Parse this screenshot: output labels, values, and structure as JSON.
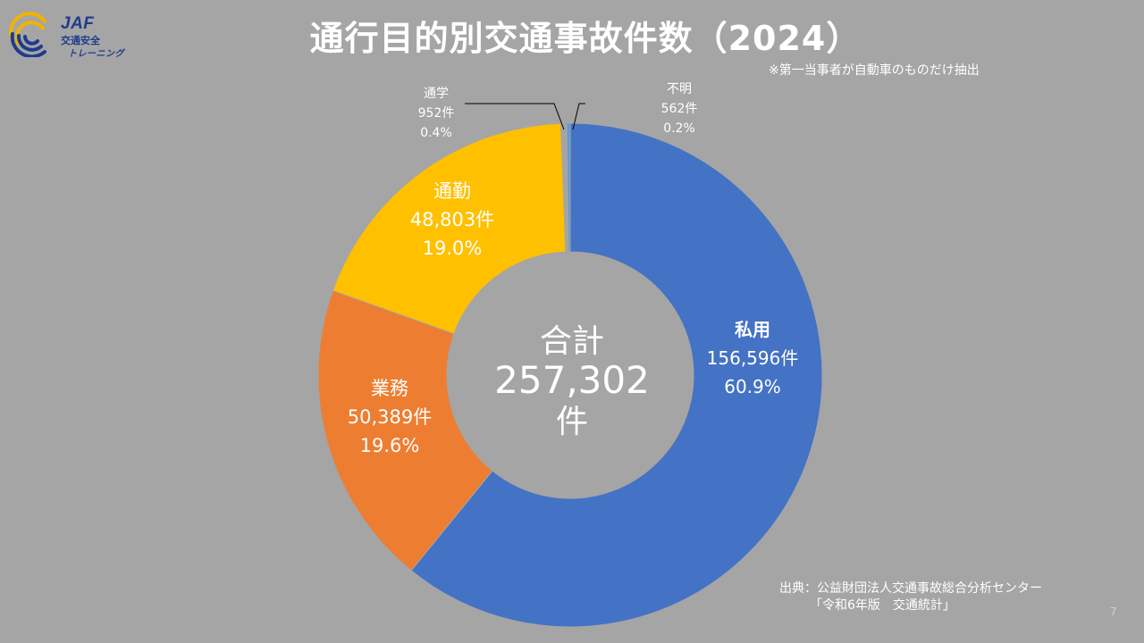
{
  "logo": {
    "line1": "JAF",
    "line2": "交通安全",
    "line3": "トレーニング"
  },
  "title": "通行目的別交通事故件数（2024）",
  "note": "※第一当事者が自動車のものだけ抽出",
  "source": {
    "line1": "出典：公益財団法人交通事故総合分析センター",
    "line2": "「令和6年版　交通統計」"
  },
  "page_number": "7",
  "center": {
    "label": "合計",
    "value": "257,302",
    "unit": "件"
  },
  "chart_data": {
    "type": "doughnut",
    "title": "通行目的別交通事故件数（2024）",
    "total": 257302,
    "slices": [
      {
        "name": "私用",
        "value": 156596,
        "count_label": "156,596件",
        "percent_label": "60.9%",
        "color": "#4472c4"
      },
      {
        "name": "業務",
        "value": 50389,
        "count_label": "50,389件",
        "percent_label": "19.6%",
        "color": "#ed7d31"
      },
      {
        "name": "通勤",
        "value": 48803,
        "count_label": "48,803件",
        "percent_label": "19.0%",
        "color": "#ffc000"
      },
      {
        "name": "通学",
        "value": 952,
        "count_label": "952件",
        "percent_label": "0.4%",
        "color": "#a5a5a5"
      },
      {
        "name": "不明",
        "value": 562,
        "count_label": "562件",
        "percent_label": "0.2%",
        "color": "#5b9bd5"
      }
    ]
  }
}
